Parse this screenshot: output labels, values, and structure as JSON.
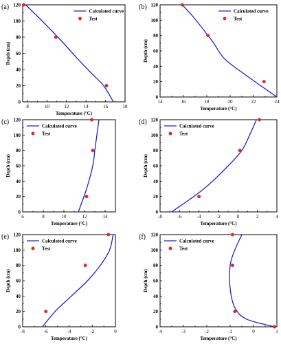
{
  "chart_data": [
    {
      "type": "line",
      "panel_label": "(a)",
      "xlabel": "Temperature (°C)",
      "ylabel": "Depth (cm)",
      "xlim": [
        7.5,
        18
      ],
      "ylim": [
        0,
        120
      ],
      "xticks": [
        8,
        10,
        12,
        14,
        16,
        18
      ],
      "yticks": [
        0,
        20,
        40,
        60,
        80,
        100,
        120
      ],
      "grid": false,
      "legend": "top-right",
      "series": [
        {
          "name": "Calculated curve",
          "style": "line",
          "color": "#1f1fd0",
          "x": [
            7.8,
            9.5,
            11.5,
            13.0,
            14.5,
            15.8,
            16.8
          ],
          "y": [
            120,
            100,
            75,
            55,
            36,
            20,
            0
          ]
        },
        {
          "name": "Test",
          "style": "marker",
          "color": "#e8271f",
          "x": [
            7.6,
            10.9,
            16.1
          ],
          "y": [
            120,
            80,
            20
          ]
        }
      ]
    },
    {
      "type": "line",
      "panel_label": "(b)",
      "xlabel": "Temperature (°C)",
      "ylabel": "Depth (cm)",
      "xlim": [
        14,
        24
      ],
      "ylim": [
        0,
        120
      ],
      "xticks": [
        14,
        16,
        18,
        20,
        22,
        24
      ],
      "yticks": [
        0,
        20,
        40,
        60,
        80,
        100,
        120
      ],
      "grid": false,
      "legend": "top-right",
      "series": [
        {
          "name": "Calculated curve",
          "style": "line",
          "color": "#1f1fd0",
          "x": [
            15.9,
            16.8,
            17.6,
            18.1,
            18.6,
            19.5,
            21.2,
            24.0
          ],
          "y": [
            120,
            105,
            90,
            80,
            70,
            50,
            30,
            0
          ]
        },
        {
          "name": "Test",
          "style": "marker",
          "color": "#e8271f",
          "x": [
            15.9,
            18.1,
            22.9
          ],
          "y": [
            120,
            80,
            20
          ]
        }
      ]
    },
    {
      "type": "line",
      "panel_label": "(c)",
      "xlabel": "Temperature (°C)",
      "ylabel": "Depth (cm)",
      "xlim": [
        6,
        15
      ],
      "ylim": [
        0,
        120
      ],
      "xticks": [
        6,
        8,
        10,
        12,
        14
      ],
      "yticks": [
        0,
        20,
        40,
        60,
        80,
        100,
        120
      ],
      "grid": false,
      "legend": "top-left",
      "series": [
        {
          "name": "Calculated curve",
          "style": "line",
          "color": "#1f1fd0",
          "x": [
            13.4,
            13.2,
            13.0,
            12.8,
            12.2,
            11.4
          ],
          "y": [
            120,
            100,
            80,
            60,
            30,
            0
          ]
        },
        {
          "name": "Test",
          "style": "marker",
          "color": "#e8271f",
          "x": [
            12.7,
            12.8,
            12.2
          ],
          "y": [
            120,
            80,
            20
          ]
        }
      ]
    },
    {
      "type": "line",
      "panel_label": "(d)",
      "xlabel": "Temperature (°C)",
      "ylabel": "Depth (cm)",
      "xlim": [
        -8,
        4
      ],
      "ylim": [
        0,
        120
      ],
      "xticks": [
        -8,
        -6,
        -4,
        -2,
        0,
        2,
        4
      ],
      "yticks": [
        0,
        20,
        40,
        60,
        80,
        100,
        120
      ],
      "grid": false,
      "legend": "top-left",
      "series": [
        {
          "name": "Calculated curve",
          "style": "line",
          "color": "#1f1fd0",
          "x": [
            1.9,
            1.2,
            0.4,
            -1.0,
            -3.5,
            -6.8
          ],
          "y": [
            120,
            100,
            80,
            60,
            30,
            0
          ]
        },
        {
          "name": "Test",
          "style": "marker",
          "color": "#e8271f",
          "x": [
            2.2,
            0.2,
            -4.0
          ],
          "y": [
            120,
            80,
            20
          ]
        }
      ]
    },
    {
      "type": "line",
      "panel_label": "(e)",
      "xlabel": "Temperature (°C)",
      "ylabel": "Depth (cm)",
      "xlim": [
        -8,
        0
      ],
      "ylim": [
        0,
        120
      ],
      "xticks": [
        -8,
        -6,
        -4,
        -2,
        0
      ],
      "yticks": [
        0,
        20,
        40,
        60,
        80,
        100,
        120
      ],
      "grid": false,
      "legend": "top-left",
      "series": [
        {
          "name": "Calculated curve",
          "style": "line",
          "color": "#1f1fd0",
          "x": [
            -0.2,
            -0.5,
            -1.3,
            -2.4,
            -3.8,
            -5.2,
            -6.3
          ],
          "y": [
            120,
            100,
            80,
            60,
            40,
            20,
            0
          ]
        },
        {
          "name": "Test",
          "style": "marker",
          "color": "#e8271f",
          "x": [
            -0.6,
            -2.6,
            -6.0
          ],
          "y": [
            120,
            80,
            20
          ]
        }
      ]
    },
    {
      "type": "line",
      "panel_label": "(f)",
      "xlabel": "Temperature (°C)",
      "ylabel": "Depth (cm)",
      "xlim": [
        -4,
        1
      ],
      "ylim": [
        0,
        120
      ],
      "xticks": [
        -4,
        -3,
        -2,
        -1,
        0,
        1
      ],
      "yticks": [
        0,
        20,
        40,
        60,
        80,
        100,
        120
      ],
      "grid": false,
      "legend": "top-left",
      "series": [
        {
          "name": "Calculated curve",
          "style": "line",
          "color": "#1f1fd0",
          "x": [
            -0.5,
            -0.8,
            -1.0,
            -1.0,
            -0.8,
            -0.3,
            0.9
          ],
          "y": [
            120,
            100,
            80,
            50,
            25,
            10,
            0
          ]
        },
        {
          "name": "Test",
          "style": "marker",
          "color": "#e8271f",
          "x": [
            -0.9,
            -0.9,
            -0.8,
            0.9
          ],
          "y": [
            120,
            80,
            20,
            0
          ]
        }
      ]
    }
  ]
}
